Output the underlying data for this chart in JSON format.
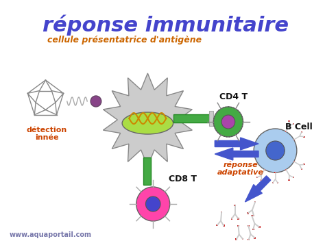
{
  "title": "réponse immunitaire",
  "title_color": "#4444cc",
  "subtitle": "cellule présentatrice d'antigène",
  "subtitle_color": "#cc6600",
  "label_detection_line1": "détection",
  "label_detection_line2": "innée",
  "label_cd4": "CD4 T",
  "label_cd8": "CD8 T",
  "label_bcell": "B Cell",
  "label_reponse_line1": "réponse",
  "label_reponse_line2": "adaptative",
  "label_reponse_color": "#cc4400",
  "website": "www.aquaportail.com",
  "bg_color": "#ffffff",
  "arrow_color": "#4455cc",
  "apc_body_color": "#cccccc",
  "apc_nucleus_color": "#aadd44",
  "cd4_body_color": "#44aa44",
  "cd4_nucleus_color": "#aa44aa",
  "cd8_body_color": "#ff44aa",
  "cd8_nucleus_color": "#4444cc",
  "bcell_body_color": "#aaccee",
  "bcell_nucleus_color": "#4466cc",
  "antibody_color": "#cccccc",
  "antibody_tip_color": "#cc2222",
  "antigen_color": "#884488",
  "helix_color": "#cc8800",
  "rod_color": "#44aa44",
  "spring_color": "#aaaaaa",
  "wire_color": "#888888"
}
